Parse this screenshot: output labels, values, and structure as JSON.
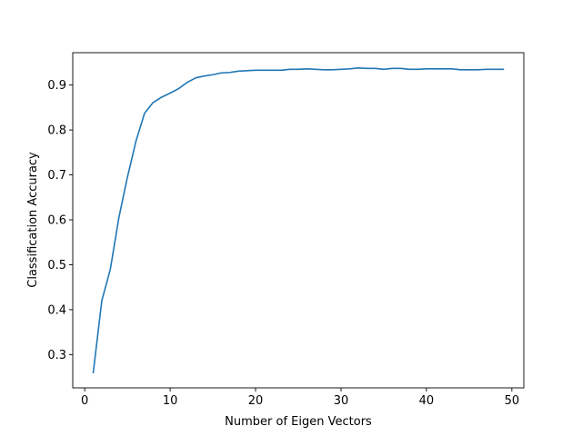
{
  "chart_data": {
    "type": "line",
    "xlabel": "Number of Eigen Vectors",
    "ylabel": "Classification Accuracy",
    "xlim": [
      -1.4,
      51.4
    ],
    "ylim": [
      0.226,
      0.972
    ],
    "xticks": [
      0,
      10,
      20,
      30,
      40,
      50
    ],
    "yticks": [
      0.3,
      0.4,
      0.5,
      0.6,
      0.7,
      0.8,
      0.9
    ],
    "xtick_labels": [
      "0",
      "10",
      "20",
      "30",
      "40",
      "50"
    ],
    "ytick_labels": [
      "0.3",
      "0.4",
      "0.5",
      "0.6",
      "0.7",
      "0.8",
      "0.9"
    ],
    "grid": false,
    "series": [
      {
        "color": "#1f77b4",
        "x": [
          1,
          2,
          3,
          4,
          5,
          6,
          7,
          8,
          9,
          10,
          11,
          12,
          13,
          14,
          15,
          16,
          17,
          18,
          19,
          20,
          21,
          22,
          23,
          24,
          25,
          26,
          27,
          28,
          29,
          30,
          31,
          32,
          33,
          34,
          35,
          36,
          37,
          38,
          39,
          40,
          41,
          42,
          43,
          44,
          45,
          46,
          47,
          48,
          49
        ],
        "values": [
          0.26,
          0.42,
          0.49,
          0.605,
          0.695,
          0.775,
          0.837,
          0.861,
          0.873,
          0.882,
          0.892,
          0.906,
          0.916,
          0.92,
          0.923,
          0.927,
          0.928,
          0.931,
          0.932,
          0.933,
          0.933,
          0.933,
          0.933,
          0.935,
          0.935,
          0.936,
          0.935,
          0.934,
          0.934,
          0.935,
          0.936,
          0.938,
          0.937,
          0.937,
          0.935,
          0.937,
          0.937,
          0.935,
          0.935,
          0.936,
          0.936,
          0.936,
          0.936,
          0.934,
          0.934,
          0.934,
          0.935,
          0.935,
          0.935
        ]
      }
    ]
  }
}
